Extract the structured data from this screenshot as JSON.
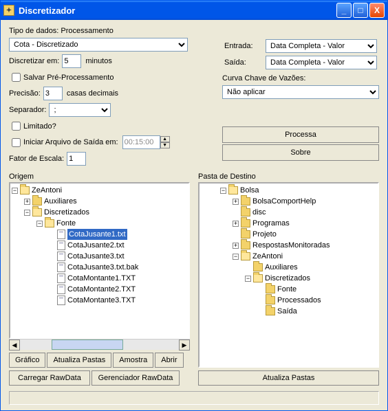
{
  "window": {
    "title": "Discretizador"
  },
  "tipo_dados": {
    "label": "Tipo de dados: Processamento",
    "select": "Cota - Discretizado"
  },
  "discretizar": {
    "label": "Discretizar em:",
    "value": "5",
    "unit": "minutos"
  },
  "salvar_pre": {
    "label": "Salvar Pré-Processamento",
    "checked": false
  },
  "precisao": {
    "label": "Precisão:",
    "value": "3",
    "unit": "casas decimais"
  },
  "separador": {
    "label": "Separador:",
    "value": ";"
  },
  "limitado": {
    "label": "Limitado?",
    "checked": false
  },
  "iniciar_arquivo": {
    "label": "Iniciar Arquivo de Saída em:",
    "checked": false,
    "value": "00:15:00"
  },
  "fator_escala": {
    "label": "Fator de Escala:",
    "value": "1"
  },
  "entrada": {
    "label": "Entrada:",
    "value": "Data Completa - Valor"
  },
  "saida": {
    "label": "Saída:",
    "value": "Data Completa - Valor"
  },
  "curva": {
    "label": "Curva Chave de Vazões:",
    "value": "Não aplicar"
  },
  "actions": {
    "processa": "Processa",
    "sobre": "Sobre"
  },
  "origem": {
    "label": "Origem",
    "root": "ZeAntoni",
    "folders": {
      "auxiliares": "Auxiliares",
      "discretizados": "Discretizados",
      "fonte": "Fonte"
    },
    "files": [
      "CotaJusante1.txt",
      "CotaJusante2.txt",
      "CotaJusante3.txt",
      "CotaJusante3.txt.bak",
      "CotaMontante1.TXT",
      "CotaMontante2.TXT",
      "CotaMontante3.TXT"
    ],
    "selected": "CotaJusante1.txt",
    "buttons": {
      "grafico": "Gráfico",
      "atualiza": "Atualiza Pastas",
      "amostra": "Amostra",
      "abrir": "Abrir",
      "carregar": "Carregar RawData",
      "gerenciador": "Gerenciador RawData"
    }
  },
  "destino": {
    "label": "Pasta de Destino",
    "root": "Bolsa",
    "items": {
      "bolsa_comport": "BolsaComportHelp",
      "disc": "disc",
      "programas": "Programas",
      "projeto": "Projeto",
      "respostas": "RespostasMonitoradas",
      "zeantoni": "ZeAntoni",
      "auxiliares": "Auxiliares",
      "discretizados": "Discretizados",
      "fonte": "Fonte",
      "processados": "Processados",
      "saida": "Saída"
    },
    "button": "Atualiza Pastas"
  }
}
